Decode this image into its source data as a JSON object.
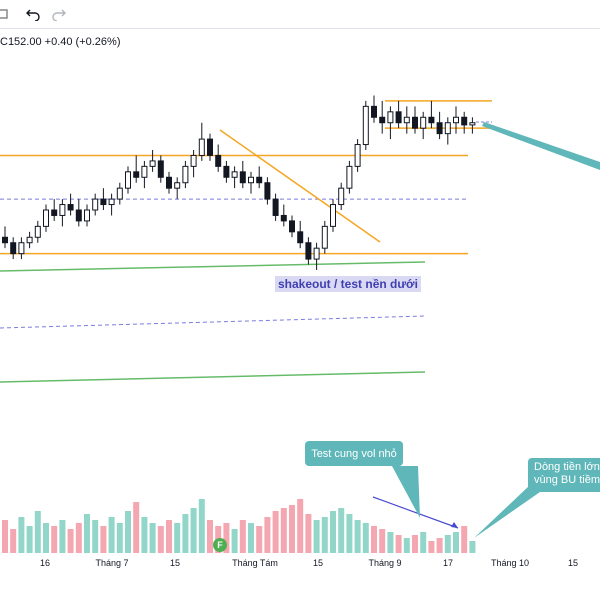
{
  "toolbar": {
    "left_icon": "partial-button",
    "undo_icon": "undo-icon",
    "redo_icon": "redo-icon"
  },
  "quote": {
    "price_text": "C152.00",
    "change_text": "+0.40 (+0.26%)"
  },
  "annotations": {
    "shakeout": "shakeout / test nền dưới",
    "test_vol": "Test cung vol nhỏ",
    "money_flow_line1": "Dòng tiền lớn",
    "money_flow_line2": "vùng BU tiềm",
    "event_marker": "F"
  },
  "xaxis": {
    "ticks": [
      "16",
      "Tháng 7",
      "15",
      "Tháng Tám",
      "15",
      "Tháng 9",
      "17",
      "Tháng 10",
      "15"
    ]
  },
  "colors": {
    "up": "#26a69a",
    "down": "#ef5350",
    "vol_up": "#92d6c9",
    "vol_down": "#f4a7b0",
    "support_orange": "#f5a623",
    "trend_green": "#66bb6a",
    "dashed_blue": "#7b7be0",
    "callout_teal": "#5fb7b9"
  },
  "chart_data": {
    "type": "candlestick",
    "note_series": "approximate daily OHLC read from chart, price units",
    "candles": [
      [
        131,
        133,
        129,
        130
      ],
      [
        130,
        131,
        127,
        128
      ],
      [
        128,
        131,
        127,
        130
      ],
      [
        130,
        132,
        129,
        131
      ],
      [
        131,
        134,
        130,
        133
      ],
      [
        133,
        137,
        132,
        136
      ],
      [
        136,
        138,
        134,
        135
      ],
      [
        135,
        138,
        133,
        137
      ],
      [
        137,
        139,
        135,
        136
      ],
      [
        136,
        138,
        133,
        134
      ],
      [
        134,
        137,
        133,
        136
      ],
      [
        136,
        139,
        135,
        138
      ],
      [
        138,
        140,
        136,
        137
      ],
      [
        137,
        139,
        135,
        138
      ],
      [
        138,
        141,
        137,
        140
      ],
      [
        140,
        144,
        139,
        143
      ],
      [
        143,
        146,
        141,
        142
      ],
      [
        142,
        145,
        140,
        144
      ],
      [
        144,
        147,
        143,
        145
      ],
      [
        145,
        146,
        141,
        142
      ],
      [
        142,
        143,
        139,
        140
      ],
      [
        140,
        142,
        138,
        141
      ],
      [
        141,
        145,
        140,
        144
      ],
      [
        144,
        147,
        142,
        146
      ],
      [
        146,
        152,
        145,
        149
      ],
      [
        149,
        150,
        145,
        146
      ],
      [
        146,
        148,
        143,
        144
      ],
      [
        144,
        145,
        141,
        142
      ],
      [
        142,
        144,
        140,
        143
      ],
      [
        143,
        145,
        140,
        141
      ],
      [
        141,
        143,
        139,
        142
      ],
      [
        142,
        144,
        140,
        141
      ],
      [
        141,
        142,
        137,
        138
      ],
      [
        138,
        139,
        134,
        135
      ],
      [
        135,
        137,
        133,
        134
      ],
      [
        134,
        135,
        131,
        132
      ],
      [
        132,
        134,
        129,
        130
      ],
      [
        130,
        131,
        126,
        127
      ],
      [
        127,
        130,
        125,
        129
      ],
      [
        129,
        134,
        128,
        133
      ],
      [
        133,
        138,
        132,
        137
      ],
      [
        137,
        141,
        136,
        140
      ],
      [
        140,
        145,
        139,
        144
      ],
      [
        144,
        149,
        143,
        148
      ],
      [
        148,
        156,
        147,
        155
      ],
      [
        155,
        157,
        152,
        153
      ],
      [
        153,
        156,
        150,
        152
      ],
      [
        152,
        155,
        149,
        154
      ],
      [
        154,
        156,
        151,
        152
      ],
      [
        152,
        155,
        150,
        153
      ],
      [
        153,
        155,
        150,
        151
      ],
      [
        151,
        154,
        149,
        153
      ],
      [
        153,
        156,
        151,
        152
      ],
      [
        152,
        154,
        149,
        150
      ],
      [
        150,
        153,
        148,
        152
      ],
      [
        152,
        155,
        150,
        153
      ],
      [
        153,
        154,
        150,
        151.6
      ],
      [
        151.6,
        153,
        150,
        152
      ]
    ],
    "volume": [
      0.55,
      0.4,
      0.6,
      0.45,
      0.7,
      0.5,
      0.45,
      0.55,
      0.4,
      0.5,
      0.65,
      0.55,
      0.45,
      0.6,
      0.5,
      0.7,
      0.85,
      0.6,
      0.5,
      0.45,
      0.55,
      0.5,
      0.65,
      0.75,
      0.9,
      0.55,
      0.45,
      0.5,
      0.4,
      0.55,
      0.5,
      0.45,
      0.6,
      0.7,
      0.75,
      0.8,
      0.9,
      0.65,
      0.55,
      0.6,
      0.7,
      0.75,
      0.65,
      0.55,
      0.5,
      0.45,
      0.4,
      0.35,
      0.3,
      0.25,
      0.3,
      0.35,
      0.2,
      0.25,
      0.3,
      0.35,
      0.45,
      0.2
    ],
    "horizontal_levels": {
      "resistance_top": 156,
      "resistance_bottom": 151,
      "mid_support": 146,
      "low_support": 128,
      "dashed_1": 138,
      "dashed_2": 117
    }
  }
}
